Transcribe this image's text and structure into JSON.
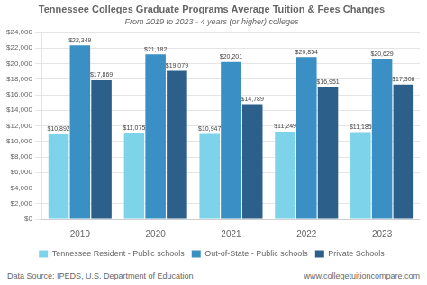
{
  "chart_data": {
    "type": "bar",
    "title": "Tennessee Colleges Graduate Programs Average Tuition & Fees Changes",
    "subtitle": "From 2019 to 2023 - 4 years (or higher) colleges",
    "annotations": [
      "Data Source: IPEDS, U.S. Department of Education",
      "www.collegetuitioncompare.com"
    ],
    "categories": [
      "2019",
      "2020",
      "2021",
      "2022",
      "2023"
    ],
    "series": [
      {
        "name": "Tennessee Resident - Public schools",
        "color": "#7DD4EA",
        "values": [
          10892,
          11075,
          10947,
          11249,
          11185
        ],
        "value_labels": [
          "$10,892",
          "$11,075",
          "$10,947",
          "$11,249",
          "$11,185"
        ]
      },
      {
        "name": "Out-of-State - Public schools",
        "color": "#3A8FC4",
        "values": [
          22349,
          21182,
          20201,
          20854,
          20629
        ],
        "value_labels": [
          "$22,349",
          "$21,182",
          "$20,201",
          "$20,854",
          "$20,629"
        ]
      },
      {
        "name": "Private Schools",
        "color": "#2C5F8A",
        "values": [
          17869,
          19079,
          14789,
          16951,
          17306
        ],
        "value_labels": [
          "$17,869",
          "$19,079",
          "$14,789",
          "$16,951",
          "$17,306"
        ]
      }
    ],
    "ylim": [
      0,
      24000
    ],
    "yticks": [
      {
        "value": 0,
        "label": "$0"
      },
      {
        "value": 2000,
        "label": "$2,000"
      },
      {
        "value": 4000,
        "label": "$4,000"
      },
      {
        "value": 6000,
        "label": "$6,000"
      },
      {
        "value": 8000,
        "label": "$8,000"
      },
      {
        "value": 10000,
        "label": "$10,000"
      },
      {
        "value": 12000,
        "label": "$12,000"
      },
      {
        "value": 14000,
        "label": "$14,000"
      },
      {
        "value": 16000,
        "label": "$16,000"
      },
      {
        "value": 18000,
        "label": "$18,000"
      },
      {
        "value": 20000,
        "label": "$20,000"
      },
      {
        "value": 22000,
        "label": "$22,000"
      },
      {
        "value": 24000,
        "label": "$24,000"
      }
    ],
    "grid": true,
    "legend": "bottom",
    "data_labels": true
  }
}
